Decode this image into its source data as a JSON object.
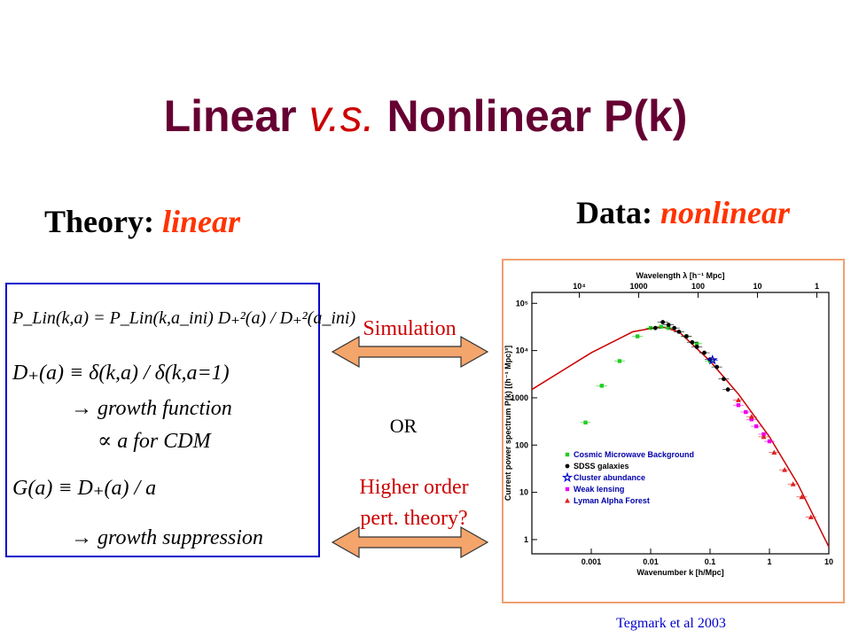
{
  "slide": {
    "title": {
      "part1": "Linear ",
      "part2": "v.s.",
      "part3": " Nonlinear P(k)"
    },
    "theory": {
      "label": "Theory:",
      "value": "linear"
    },
    "data": {
      "label": "Data:",
      "value": "nonlinear"
    },
    "equations": [
      "P_Lin(k,a) = P_Lin(k,a_ini) D₊²(a) / D₊²(a_ini)",
      "D₊(a) ≡ δ(k,a) / δ(k,a=1)",
      "→ growth function",
      "∝ a for CDM",
      "G(a) ≡ D₊(a) / a",
      "→ growth suppression"
    ],
    "simulation": "Simulation",
    "or": "OR",
    "perturbation": [
      "Higher order",
      "pert. theory?"
    ],
    "citation": "Tegmark et al 2003"
  },
  "chart_data": {
    "type": "scatter",
    "log_x": true,
    "log_y": true,
    "xlabel": "Wavenumber k [h/Mpc]",
    "ylabel": "Current power spectrum P(k) [(h⁻¹ Mpc)³]",
    "x2label": "Wavelength λ [h⁻¹ Mpc]",
    "xlim": [
      0.0001,
      10
    ],
    "ylim": [
      0.5,
      170000
    ],
    "xticks": [
      0.001,
      0.01,
      0.1,
      1,
      10
    ],
    "yticks": [
      1,
      10,
      100,
      1000,
      {
        "value": 10000,
        "label": "10⁴"
      },
      {
        "value": 100000,
        "label": "10⁵"
      }
    ],
    "x2ticks": [
      {
        "value": 10000,
        "label": "10⁴"
      },
      1000,
      100,
      10,
      1
    ],
    "series": [
      {
        "type": "line",
        "color": "#cc0000",
        "x": [
          0.0001,
          0.001,
          0.005,
          0.015,
          0.03,
          0.1,
          0.3,
          1,
          3,
          10
        ],
        "values": [
          1500,
          9000,
          25000,
          32000,
          25000,
          6000,
          1200,
          150,
          15,
          0.7
        ]
      },
      {
        "name": "Cosmic Microwave Background",
        "color": "#22cc22",
        "marker": "square",
        "x": [
          0.0008,
          0.0015,
          0.003,
          0.006,
          0.01,
          0.015,
          0.02,
          0.04,
          0.06,
          0.1
        ],
        "values": [
          300,
          1800,
          6000,
          20000,
          30000,
          32000,
          30000,
          20000,
          14000,
          6000
        ]
      },
      {
        "name": "SDSS galaxies",
        "color": "#000000",
        "marker": "circle",
        "x": [
          0.012,
          0.016,
          0.02,
          0.025,
          0.03,
          0.04,
          0.05,
          0.06,
          0.08,
          0.1,
          0.13,
          0.17,
          0.2
        ],
        "values": [
          30000,
          40000,
          35000,
          30000,
          25000,
          20000,
          15000,
          12000,
          9000,
          6500,
          4500,
          2500,
          1500
        ]
      },
      {
        "name": "Cluster abundance",
        "color": "#0000cc",
        "marker": "star",
        "x": [
          0.11
        ],
        "values": [
          6300
        ]
      },
      {
        "name": "Weak lensing",
        "color": "#ee00ee",
        "marker": "square",
        "x": [
          0.3,
          0.4,
          0.5,
          0.6,
          0.8,
          1
        ],
        "values": [
          700,
          500,
          350,
          250,
          170,
          120
        ]
      },
      {
        "name": "Lyman Alpha Forest",
        "color": "#dd2222",
        "marker": "triangle",
        "x": [
          0.3,
          0.5,
          0.8,
          1.2,
          1.8,
          2.5,
          3.5,
          5
        ],
        "values": [
          900,
          400,
          150,
          70,
          30,
          15,
          8,
          3
        ]
      }
    ]
  }
}
